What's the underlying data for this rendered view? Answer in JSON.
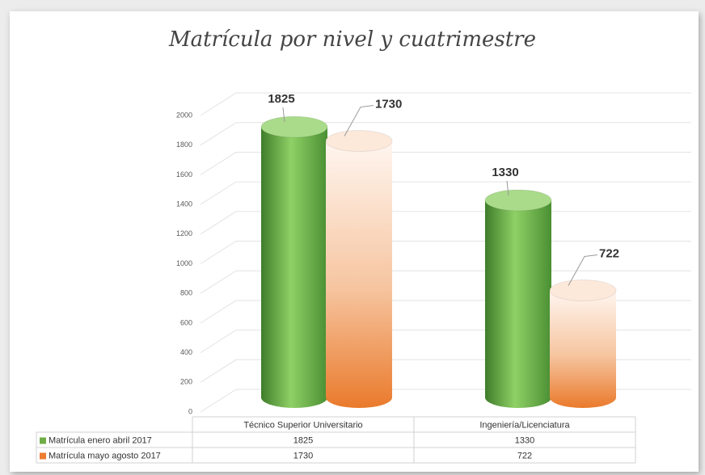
{
  "chart_data": {
    "type": "bar",
    "title": "Matrícula por nivel y cuatrimestre",
    "categories": [
      "Técnico Superior Universitario",
      "Ingeniería/Licenciatura"
    ],
    "series": [
      {
        "name": "Matrícula enero abril 2017",
        "color": "#70ad47",
        "values": [
          1825,
          1330
        ]
      },
      {
        "name": "Matrícula mayo agosto 2017",
        "color": "#ed7d31",
        "values": [
          1730,
          722
        ]
      }
    ],
    "ylim": [
      0,
      2000
    ],
    "yticks": [
      0,
      200,
      400,
      600,
      800,
      1000,
      1200,
      1400,
      1600,
      1800,
      2000
    ],
    "grid": true,
    "data_table": true
  }
}
